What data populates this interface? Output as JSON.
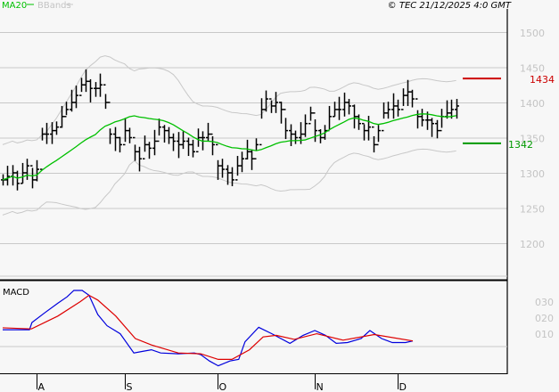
{
  "header": {
    "legend_ma": "MA20",
    "legend_bb": "BBands",
    "copyright": "© TEC 21/12/2025 4:0 GMT"
  },
  "colors": {
    "ma": "#00c000",
    "bbands": "#c8c8c8",
    "bars": "#000000",
    "resistance": "#cc0000",
    "support": "#009900",
    "macd": "#0000dd",
    "signal": "#dd0000"
  },
  "chart_data": [
    {
      "type": "ohlc",
      "title": "Price",
      "ylim": [
        1180,
        1520
      ],
      "yticks": [
        "1500",
        "1450",
        "1400",
        "1350",
        "1300",
        "1250",
        "1200"
      ],
      "ytick_values": [
        1500,
        1450,
        1400,
        1350,
        1300,
        1250,
        1200
      ],
      "close": [
        1290,
        1295,
        1300,
        1285,
        1300,
        1310,
        1290,
        1305,
        1355,
        1355,
        1360,
        1365,
        1380,
        1390,
        1400,
        1410,
        1425,
        1430,
        1420,
        1420,
        1425,
        1400,
        1355,
        1350,
        1340,
        1360,
        1350,
        1330,
        1320,
        1340,
        1335,
        1345,
        1365,
        1360,
        1350,
        1345,
        1340,
        1345,
        1340,
        1330,
        1350,
        1350,
        1355,
        1340,
        1310,
        1305,
        1300,
        1290,
        1310,
        1320,
        1330,
        1320,
        1340,
        1390,
        1405,
        1395,
        1400,
        1390,
        1360,
        1355,
        1350,
        1355,
        1370,
        1385,
        1360,
        1350,
        1360,
        1380,
        1390,
        1390,
        1400,
        1395,
        1380,
        1370,
        1360,
        1365,
        1340,
        1360,
        1385,
        1390,
        1395,
        1390,
        1410,
        1415,
        1405,
        1380,
        1375,
        1375,
        1370,
        1360,
        1380,
        1385,
        1390,
        1395
      ],
      "indicators": [
        "MA20",
        "BBands"
      ],
      "levels": [
        {
          "label": "1434",
          "value": 1434,
          "kind": "resistance"
        },
        {
          "label": "1342",
          "value": 1342,
          "kind": "support"
        }
      ],
      "xticks": [
        "A",
        "S",
        "O",
        "N",
        "D"
      ],
      "xtick_bar_index": [
        7,
        25,
        44,
        64,
        81
      ]
    },
    {
      "type": "line",
      "title": "MACD",
      "yticks": [
        "030",
        "020",
        "010"
      ],
      "series": [
        {
          "name": "MACD",
          "points": [
            [
              0,
              10.5
            ],
            [
              5.5,
              10.5
            ],
            [
              6,
              15
            ],
            [
              8.6,
              21
            ],
            [
              11.3,
              27
            ],
            [
              13.2,
              31
            ],
            [
              14.6,
              35
            ],
            [
              16.3,
              35
            ],
            [
              17.7,
              32
            ],
            [
              19.5,
              20
            ],
            [
              21.4,
              13
            ],
            [
              24.1,
              8
            ],
            [
              26.9,
              -4
            ],
            [
              28.7,
              -3
            ],
            [
              30.5,
              -2
            ],
            [
              32.4,
              -4
            ],
            [
              36,
              -4.5
            ],
            [
              39.3,
              -4
            ],
            [
              40.6,
              -5
            ],
            [
              42.4,
              -9
            ],
            [
              44.2,
              -12
            ],
            [
              46.6,
              -9
            ],
            [
              48.4,
              -8
            ],
            [
              49.7,
              3
            ],
            [
              52.5,
              12
            ],
            [
              55.2,
              8
            ],
            [
              58.9,
              2
            ],
            [
              61.6,
              7
            ],
            [
              64,
              10
            ],
            [
              66.2,
              7
            ],
            [
              68.4,
              2
            ],
            [
              70.7,
              2.5
            ],
            [
              73.5,
              5
            ],
            [
              75.3,
              10
            ],
            [
              77.7,
              5
            ],
            [
              79.9,
              2.5
            ],
            [
              82.6,
              2.5
            ],
            [
              84.1,
              3.5
            ]
          ]
        },
        {
          "name": "Signal",
          "points": [
            [
              0,
              11.7
            ],
            [
              5.9,
              11
            ],
            [
              11.3,
              19
            ],
            [
              15.9,
              28
            ],
            [
              17.7,
              32
            ],
            [
              19.5,
              29
            ],
            [
              23.2,
              19
            ],
            [
              27.2,
              5
            ],
            [
              30.5,
              1
            ],
            [
              36,
              -4
            ],
            [
              40.6,
              -4.5
            ],
            [
              44.2,
              -8
            ],
            [
              47,
              -8
            ],
            [
              50.6,
              -2
            ],
            [
              53.4,
              6
            ],
            [
              56.1,
              7
            ],
            [
              59.8,
              4.5
            ],
            [
              64.4,
              8
            ],
            [
              69.8,
              4
            ],
            [
              76.2,
              7.5
            ],
            [
              84.1,
              3.5
            ]
          ]
        }
      ]
    }
  ],
  "macd_label": "MACD"
}
